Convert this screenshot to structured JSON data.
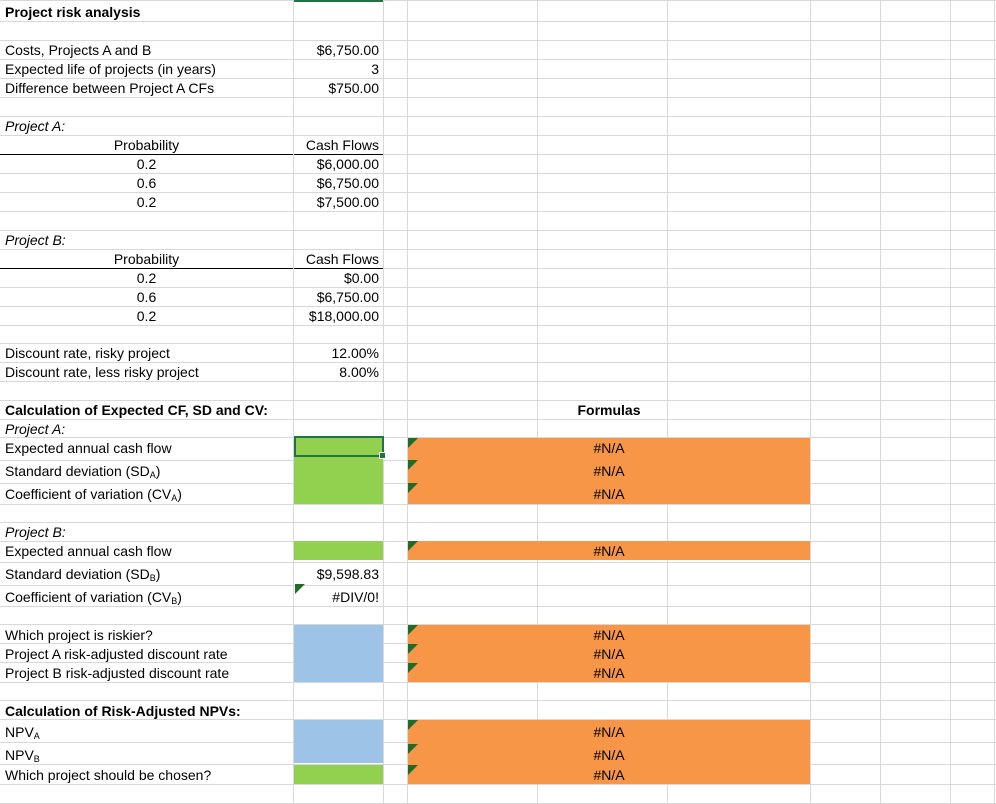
{
  "title": "Project risk analysis",
  "inputs": [
    {
      "label": "Costs, Projects A and B",
      "value": "$6,750.00"
    },
    {
      "label": "Expected life of projects (in years)",
      "value": "3"
    },
    {
      "label": "Difference between Project A CFs",
      "value": "$750.00"
    }
  ],
  "project_a": {
    "heading": "Project A:",
    "prob_header": "Probability",
    "cf_header": "Cash Flows",
    "rows": [
      {
        "prob": "0.2",
        "cf": "$6,000.00"
      },
      {
        "prob": "0.6",
        "cf": "$6,750.00"
      },
      {
        "prob": "0.2",
        "cf": "$7,500.00"
      }
    ]
  },
  "project_b": {
    "heading": "Project B:",
    "prob_header": "Probability",
    "cf_header": "Cash Flows",
    "rows": [
      {
        "prob": "0.2",
        "cf": "$0.00"
      },
      {
        "prob": "0.6",
        "cf": "$6,750.00"
      },
      {
        "prob": "0.2",
        "cf": "$18,000.00"
      }
    ]
  },
  "rates": [
    {
      "label": "Discount rate, risky project",
      "value": "12.00%"
    },
    {
      "label": "Discount rate, less risky project",
      "value": "8.00%"
    }
  ],
  "calc": {
    "heading": "Calculation of Expected CF, SD and CV:",
    "formulas_header": "Formulas",
    "a_heading": "Project A:",
    "a_rows": [
      {
        "label": "Expected annual cash flow",
        "sub": "",
        "formula": "#N/A"
      },
      {
        "label": "Standard deviation (SD",
        "sub": "A",
        "formula": "#N/A"
      },
      {
        "label": "Coefficient of variation (CV",
        "sub": "A",
        "formula": "#N/A"
      }
    ],
    "b_heading": "Project B:",
    "b_rows": [
      {
        "label": "Expected annual cash flow",
        "sub": "",
        "value": "",
        "formula": "#N/A"
      },
      {
        "label": "Standard deviation (SD",
        "sub": "B",
        "value": "$9,598.83",
        "formula": ""
      },
      {
        "label": "Coefficient of variation (CV",
        "sub": "B",
        "value": "#DIV/0!",
        "formula": ""
      }
    ]
  },
  "risk": [
    {
      "label": "Which project is riskier?",
      "formula": "#N/A"
    },
    {
      "label": "Project A risk-adjusted discount rate",
      "formula": "#N/A"
    },
    {
      "label": "Project B risk-adjusted discount rate",
      "formula": "#N/A"
    }
  ],
  "npv": {
    "heading": "Calculation of Risk-Adjusted NPVs:",
    "rows": [
      {
        "label": "NPV",
        "sub": "A",
        "formula": "#N/A"
      },
      {
        "label": "NPV",
        "sub": "B",
        "formula": "#N/A"
      },
      {
        "label": "Which project should be chosen?",
        "sub": "",
        "formula": "#N/A"
      }
    ]
  },
  "colors": {
    "green": "#92d050",
    "orange": "#f79646",
    "blue": "#9dc3e6",
    "selection": "#217346"
  }
}
